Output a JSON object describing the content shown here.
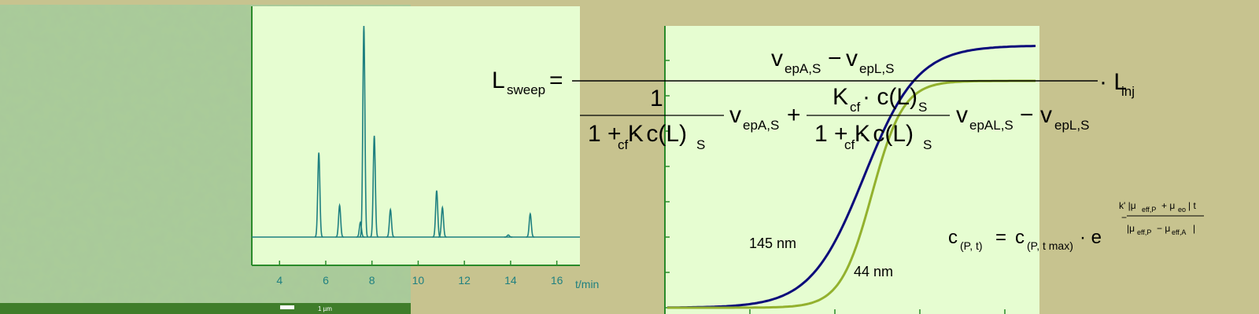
{
  "sem_image": {
    "scale_label": "1 µm"
  },
  "chromatogram": {
    "x": [
      5.7,
      6.6,
      7.5,
      7.65,
      8.1,
      8.8,
      10.8,
      11.05,
      13.9,
      14.85
    ],
    "values": [
      40,
      15,
      7,
      100,
      48,
      13,
      22,
      14,
      1,
      11
    ],
    "xlim": [
      2.8,
      17
    ],
    "ylim": [
      0,
      100
    ],
    "xticks": [
      4,
      6,
      8,
      10,
      12,
      14,
      16
    ],
    "xlabel": "t/min",
    "color": "#1f8080"
  },
  "sweep_plot": {
    "labels": [
      "145 nm",
      "44 nm"
    ]
  },
  "formula_1": [
    "L",
    "sweep",
    "=",
    "v",
    "epA,S",
    "−",
    "v",
    "epL,S",
    "· L",
    "inj",
    "1",
    "1 + K",
    "cf",
    "· c(L)",
    "S",
    "v",
    "epA,S",
    "+",
    "K",
    "cf",
    "· c(L)",
    "S",
    "1 + K",
    "cf",
    "· c(L)",
    "S",
    "v",
    "epAL,S",
    "−",
    "v",
    "epL,S"
  ],
  "formula_2": [
    "c",
    "(P, t)",
    "=",
    "c",
    "(P, t max)",
    "· e",
    "−",
    "k' |μ",
    "eff,P",
    "+ μ",
    "eo",
    "| t",
    "|μ",
    "eff,P",
    "− μ",
    "eff,A",
    "|"
  ]
}
